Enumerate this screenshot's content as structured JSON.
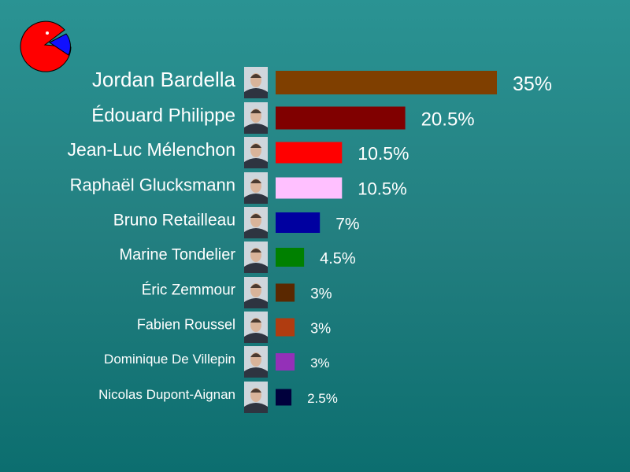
{
  "chart_data": {
    "type": "bar",
    "orientation": "horizontal",
    "categories": [
      "Jordan Bardella",
      "Édouard Philippe",
      "Jean-Luc Mélenchon",
      "Raphaël Glucksmann",
      "Bruno Retailleau",
      "Marine Tondelier",
      "Éric Zemmour",
      "Fabien Roussel",
      "Dominique De Villepin",
      "Nicolas Dupont-Aignan"
    ],
    "values": [
      35,
      20.5,
      10.5,
      10.5,
      7,
      4.5,
      3,
      3,
      3,
      2.5
    ],
    "value_labels": [
      "35%",
      "20.5%",
      "10.5%",
      "10.5%",
      "7%",
      "4.5%",
      "3%",
      "3%",
      "3%",
      "2.5%"
    ],
    "colors": [
      "#7f3f00",
      "#800000",
      "#ff0000",
      "#ffc0ff",
      "#0000a0",
      "#008000",
      "#5a2800",
      "#b03c10",
      "#9430b8",
      "#00003c"
    ],
    "xlim": [
      0,
      35
    ],
    "grid": false,
    "legend": "none"
  },
  "logo": {
    "icon": "pie-chart-icon",
    "colors": [
      "#ff0000",
      "#0000ff"
    ]
  },
  "background": {
    "top": "#2a9393",
    "bottom": "#0c6e6f"
  }
}
